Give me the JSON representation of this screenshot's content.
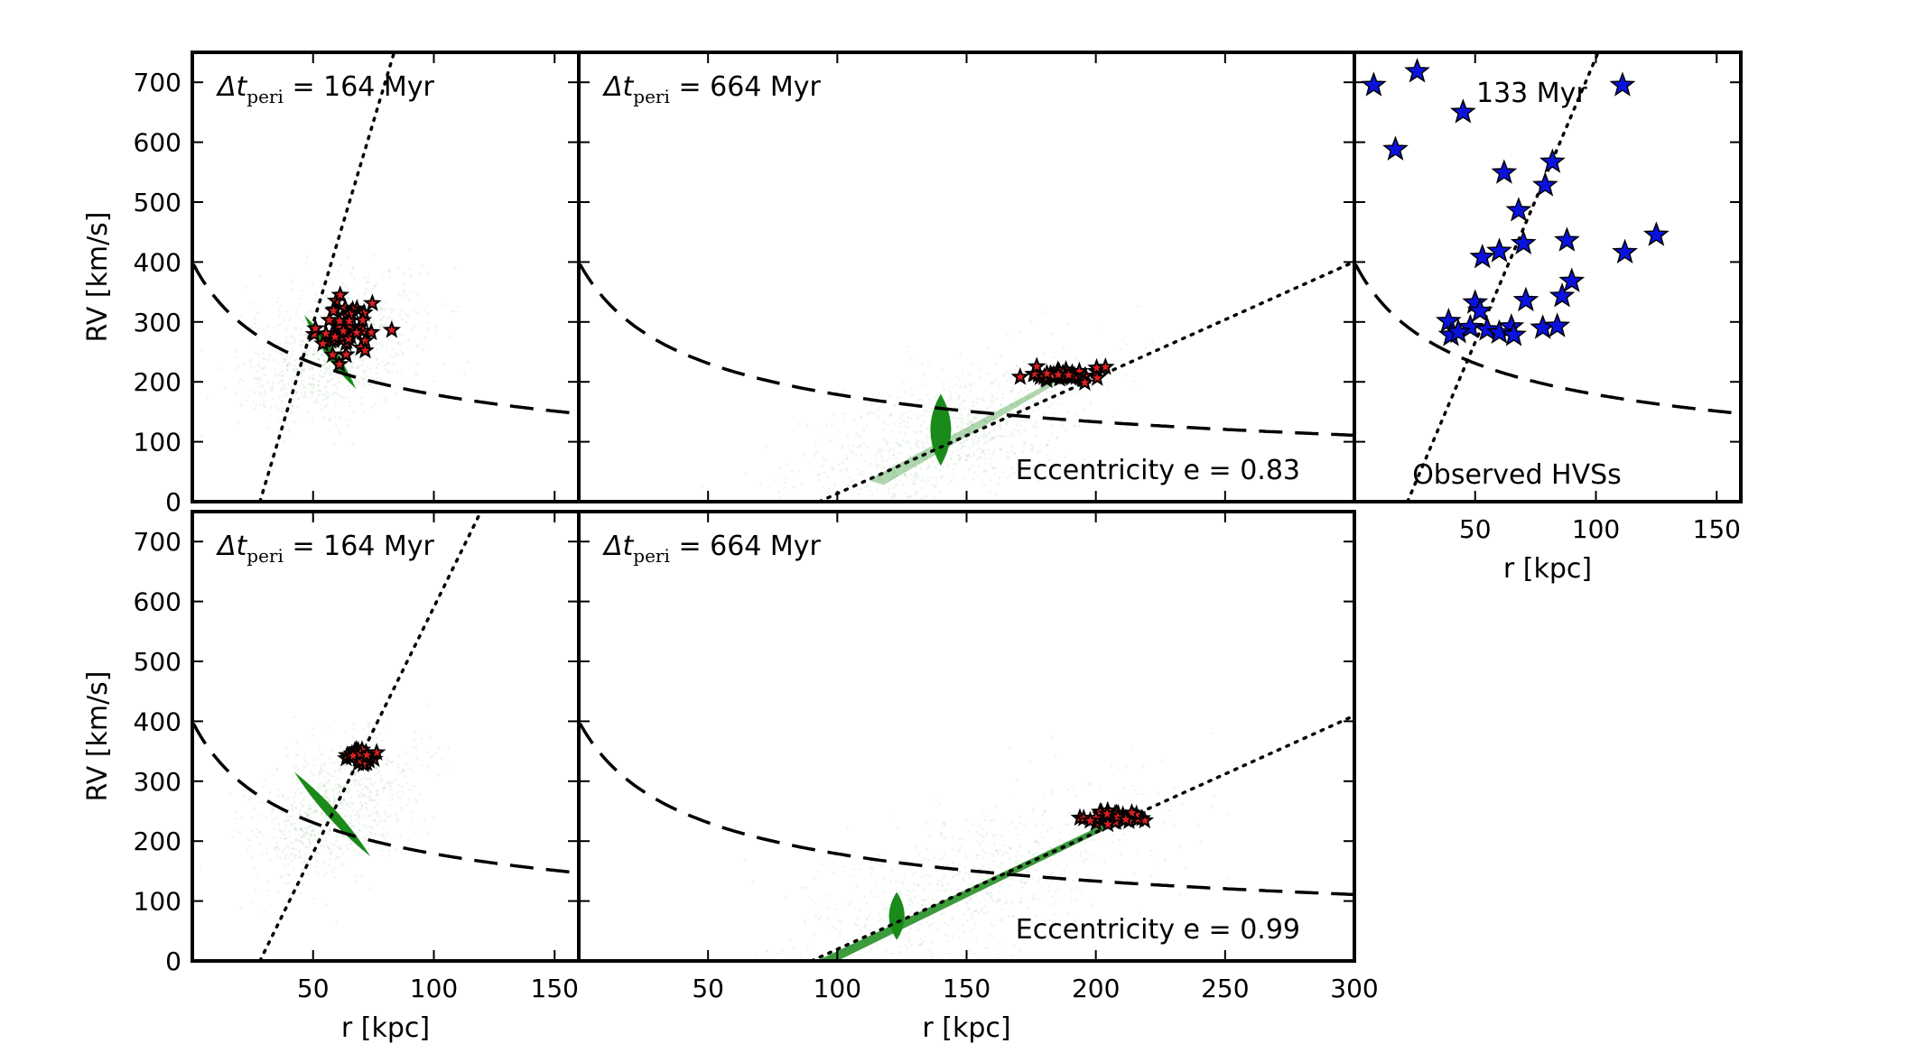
{
  "figure": {
    "background": "#ffffff"
  },
  "colors": {
    "halo": "#2e8b2e",
    "core": "#1a8a1a",
    "hvs_sim": "#e02020",
    "hvs_obs": "#0a12e0",
    "line": "#000000"
  },
  "chart_data": [
    {
      "id": "top-left",
      "type": "scatter",
      "annotation": "164 Myr",
      "annotation_prefix": "Δt",
      "annotation_sub": "peri",
      "xlim": [
        0,
        160
      ],
      "ylim": [
        0,
        750
      ],
      "xticks": [
        50,
        100,
        150
      ],
      "yticks": [
        0,
        100,
        200,
        300,
        400,
        500,
        600,
        700
      ],
      "xtick_labels": [],
      "ytick_labels": [
        "0",
        "100",
        "200",
        "300",
        "400",
        "500",
        "600",
        "700"
      ],
      "xlabel": "",
      "ylabel": "RV [km/s]",
      "escape_curve": {
        "a": 2000,
        "b": 25
      },
      "dotted_line": {
        "x0": 28,
        "slope": 13.5
      },
      "core": {
        "x": 57,
        "y": 250,
        "w": 4,
        "h": 150,
        "angle": -35
      },
      "halo": {
        "x": 58,
        "y": 255,
        "w": 60,
        "h": 180,
        "n": 900
      },
      "hvs_sim": {
        "x": 64,
        "y": 285,
        "sx": 7,
        "sy": 25,
        "n": 55
      },
      "hvs_obs": []
    },
    {
      "id": "top-middle",
      "type": "scatter",
      "annotation": "664 Myr",
      "annotation_prefix": "Δt",
      "annotation_sub": "peri",
      "xlim": [
        0,
        300
      ],
      "ylim": [
        0,
        750
      ],
      "xticks": [
        50,
        100,
        150,
        200,
        250
      ],
      "yticks": [
        100,
        200,
        300,
        400,
        500,
        600,
        700
      ],
      "xtick_labels": [],
      "ytick_labels": [],
      "xlabel": "",
      "ylabel": "",
      "secondary_text": "Eccentricity e = 0.83",
      "escape_curve": {
        "a": 2000,
        "b": 25
      },
      "dotted_line": {
        "x0": 93,
        "slope": 1.935
      },
      "core": {
        "x": 140,
        "y": 120,
        "w": 8,
        "h": 120,
        "angle": 0
      },
      "halo": {
        "x": 140,
        "y": 100,
        "w": 90,
        "h": 180,
        "n": 900
      },
      "hvs_sim": {
        "x": 188,
        "y": 212,
        "sx": 8,
        "sy": 5,
        "n": 45
      },
      "hvs_obs": []
    },
    {
      "id": "top-right",
      "type": "scatter",
      "annotation": "133 Myr",
      "xlim": [
        0,
        160
      ],
      "ylim": [
        0,
        750
      ],
      "xticks": [
        50,
        100,
        150
      ],
      "yticks": [
        100,
        200,
        300,
        400,
        500,
        600,
        700
      ],
      "xtick_labels": [
        "50",
        "100",
        "150"
      ],
      "ytick_labels": [],
      "xlabel": "r [kpc]",
      "ylabel": "",
      "secondary_text": "Observed HVSs",
      "escape_curve": {
        "a": 2000,
        "b": 25
      },
      "dotted_line": {
        "x0": 22,
        "slope": 9.5
      },
      "hvs_obs": [
        [
          8,
          695
        ],
        [
          26,
          718
        ],
        [
          17,
          588
        ],
        [
          45,
          650
        ],
        [
          111,
          695
        ],
        [
          82,
          567
        ],
        [
          62,
          549
        ],
        [
          79,
          528
        ],
        [
          68,
          486
        ],
        [
          88,
          436
        ],
        [
          70,
          431
        ],
        [
          125,
          445
        ],
        [
          112,
          416
        ],
        [
          60,
          418
        ],
        [
          53,
          408
        ],
        [
          90,
          368
        ],
        [
          86,
          343
        ],
        [
          71,
          336
        ],
        [
          50,
          332
        ],
        [
          52,
          318
        ],
        [
          39,
          301
        ],
        [
          48,
          291
        ],
        [
          55,
          287
        ],
        [
          65,
          292
        ],
        [
          78,
          290
        ],
        [
          84,
          293
        ],
        [
          60,
          282
        ],
        [
          66,
          278
        ],
        [
          40,
          278
        ],
        [
          43,
          283
        ]
      ]
    },
    {
      "id": "bottom-left",
      "type": "scatter",
      "annotation": "164 Myr",
      "annotation_prefix": "Δt",
      "annotation_sub": "peri",
      "xlim": [
        0,
        160
      ],
      "ylim": [
        0,
        750
      ],
      "xticks": [
        50,
        100,
        150
      ],
      "yticks": [
        0,
        100,
        200,
        300,
        400,
        500,
        600,
        700
      ],
      "xtick_labels": [
        "50",
        "100",
        "150"
      ],
      "ytick_labels": [
        "0",
        "100",
        "200",
        "300",
        "400",
        "500",
        "600",
        "700"
      ],
      "xlabel": "r [kpc]",
      "ylabel": "RV [km/s]",
      "escape_curve": {
        "a": 2000,
        "b": 25
      },
      "dotted_line": {
        "x0": 28,
        "slope": 8.2
      },
      "core": {
        "x": 58,
        "y": 245,
        "w": 4,
        "h": 190,
        "angle": -42
      },
      "halo": {
        "x": 58,
        "y": 250,
        "w": 55,
        "h": 180,
        "n": 800
      },
      "hvs_sim": {
        "x": 70,
        "y": 338,
        "sx": 3,
        "sy": 8,
        "n": 30
      },
      "hvs_obs": []
    },
    {
      "id": "bottom-middle",
      "type": "scatter",
      "annotation": "664 Myr",
      "annotation_prefix": "Δt",
      "annotation_sub": "peri",
      "xlim": [
        0,
        300
      ],
      "ylim": [
        0,
        750
      ],
      "xticks": [
        50,
        100,
        150,
        200,
        250,
        300
      ],
      "yticks": [
        100,
        200,
        300,
        400,
        500,
        600,
        700
      ],
      "xtick_labels": [
        "50",
        "100",
        "150",
        "200",
        "250",
        "300"
      ],
      "ytick_labels": [],
      "xlabel": "r [kpc]",
      "ylabel": "",
      "secondary_text": "Eccentricity e = 0.99",
      "escape_curve": {
        "a": 2000,
        "b": 25
      },
      "dotted_line": {
        "x0": 90,
        "slope": 1.95
      },
      "core": {
        "x": 123,
        "y": 75,
        "w": 6,
        "h": 80,
        "angle": 0
      },
      "halo": {
        "x": 150,
        "y": 130,
        "w": 110,
        "h": 200,
        "n": 700
      },
      "hvs_sim": {
        "x": 208,
        "y": 240,
        "sx": 5,
        "sy": 7,
        "n": 35
      },
      "hvs_obs": []
    }
  ]
}
